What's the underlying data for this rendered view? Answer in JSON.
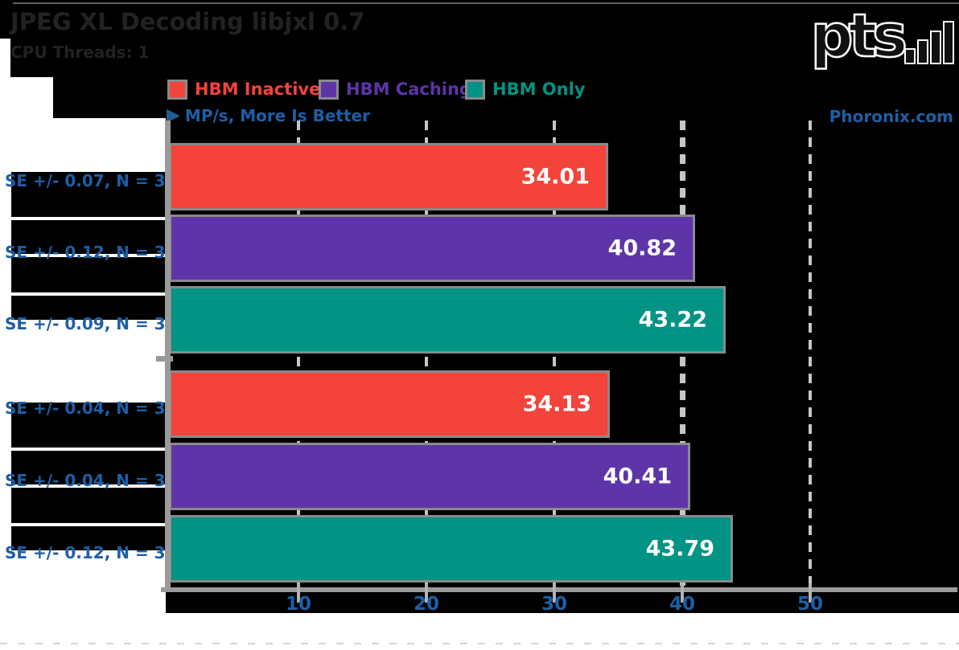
{
  "page": {
    "title": "JPEG XL Decoding libjxl 0.7",
    "subtitle": "CPU Threads: 1",
    "logo_text": "pts",
    "watermark": "Phoronix.com",
    "axis_note": "MP/s, More Is Better",
    "arrow_icon": "▶"
  },
  "legend": {
    "items": [
      {
        "label": "HBM Inactive",
        "color": "#f4433a"
      },
      {
        "label": "HBM Caching",
        "color": "#5e35a8"
      },
      {
        "label": "HBM Only",
        "color": "#019384"
      }
    ]
  },
  "colors": {
    "background": "#000000",
    "margin_white": "#ffffff",
    "blue_text": "#1d5fa6",
    "axis_gray": "#9a9a9a",
    "grid_gray": "#c6c6c6",
    "bar_border": "#8a8a8a",
    "value_text": "#ffffff",
    "dark_text": "#222222"
  },
  "chart_data": {
    "type": "bar",
    "orientation": "horizontal",
    "title": "JPEG XL Decoding libjxl 0.7",
    "subtitle": "CPU Threads: 1",
    "unit": "MP/s",
    "higher_is_better": true,
    "xlim": [
      0,
      61
    ],
    "x_ticks": [
      10,
      20,
      30,
      40,
      50
    ],
    "grid": "dashed-vertical",
    "legend_position": "top",
    "series_names": [
      "HBM Inactive",
      "HBM Caching",
      "HBM Only"
    ],
    "groups": [
      {
        "bars": [
          {
            "series": "HBM Inactive",
            "value": 34.01,
            "value_label": "34.01",
            "se_label": "SE +/- 0.07, N = 3",
            "color": "#f4433a"
          },
          {
            "series": "HBM Caching",
            "value": 40.82,
            "value_label": "40.82",
            "se_label": "SE +/- 0.12, N = 3",
            "color": "#5e35a8"
          },
          {
            "series": "HBM Only",
            "value": 43.22,
            "value_label": "43.22",
            "se_label": "SE +/- 0.09, N = 3",
            "color": "#019384"
          }
        ]
      },
      {
        "bars": [
          {
            "series": "HBM Inactive",
            "value": 34.13,
            "value_label": "34.13",
            "se_label": "SE +/- 0.04, N = 3",
            "color": "#f4433a"
          },
          {
            "series": "HBM Caching",
            "value": 40.41,
            "value_label": "40.41",
            "se_label": "SE +/- 0.04, N = 3",
            "color": "#5e35a8"
          },
          {
            "series": "HBM Only",
            "value": 43.79,
            "value_label": "43.79",
            "se_label": "SE +/- 0.12, N = 3",
            "color": "#019384"
          }
        ]
      }
    ]
  }
}
